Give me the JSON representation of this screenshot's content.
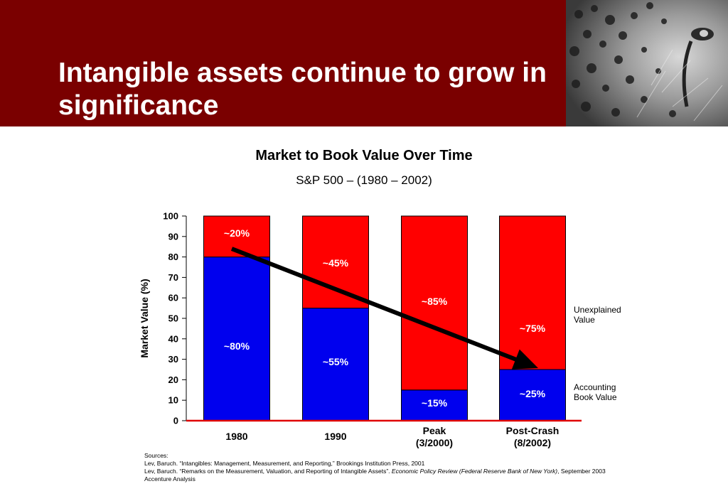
{
  "slide": {
    "title": "Intangible assets continue to grow in significance"
  },
  "colors": {
    "header_bg": "#7a0000",
    "unexplained": "#ff0000",
    "accounting": "#0000ee",
    "baseline": "#e00000",
    "arrow": "#000000"
  },
  "chart_data": {
    "type": "bar",
    "stacked": true,
    "title": "Market to Book Value Over Time",
    "subtitle": "S&P 500 – (1980 – 2002)",
    "ylabel": "Market Value (%)",
    "xlabel": "",
    "ylim": [
      0,
      100
    ],
    "yticks": [
      0,
      10,
      20,
      30,
      40,
      50,
      60,
      70,
      80,
      90,
      100
    ],
    "categories": [
      [
        "1980"
      ],
      [
        "1990"
      ],
      [
        "Peak",
        "(3/2000)"
      ],
      [
        "Post-Crash",
        "(8/2002)"
      ]
    ],
    "series": [
      {
        "name": "Accounting Book Value",
        "legend_lines": [
          "Accounting",
          "Book Value"
        ],
        "color": "#0000ee",
        "values": [
          80,
          55,
          15,
          25
        ],
        "labels": [
          "~80%",
          "~55%",
          "~15%",
          "~25%"
        ]
      },
      {
        "name": "Unexplained Value",
        "legend_lines": [
          "Unexplained",
          "Value"
        ],
        "color": "#ff0000",
        "values": [
          20,
          45,
          85,
          75
        ],
        "labels": [
          "~20%",
          "~45%",
          "~85%",
          "~75%"
        ]
      }
    ],
    "annotations": [
      {
        "type": "trend-arrow",
        "from": {
          "category": 0,
          "y": 84
        },
        "to": {
          "category": 3,
          "y": 25
        }
      }
    ],
    "grid": false,
    "legend_position": "right"
  },
  "sources": {
    "heading": "Sources:",
    "line1": "Lev, Baruch.  “Intangibles:  Management, Measurement, and Reporting,” Brookings Institution Press, 2001",
    "line2_prefix": "Lev, Baruch.  “Remarks on the Measurement, Valuation, and Reporting of Intangible Assets”.",
    "line2_italic": "Economic Policy Review (Federal Reserve Bank of New York)",
    "line2_suffix": ", September 2003",
    "line3": "Accenture Analysis"
  }
}
